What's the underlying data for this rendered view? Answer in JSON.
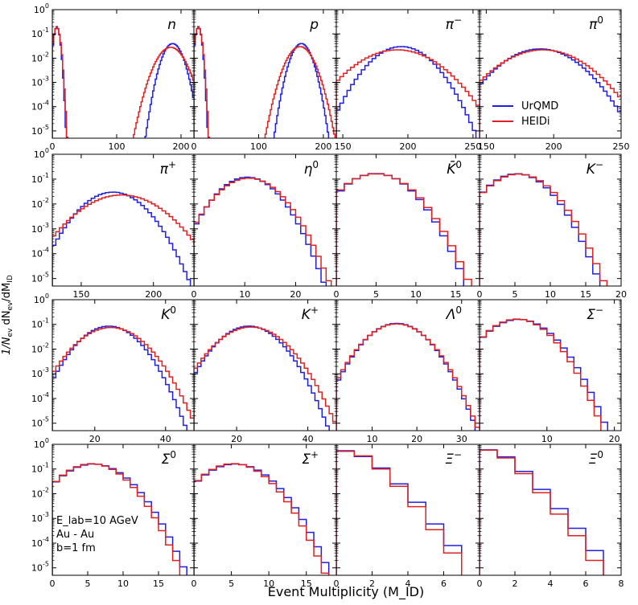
{
  "chart_data": {
    "type": "step",
    "xlabel": "Event Multiplicity (M_ID)",
    "ylabel": "1/N_ev dN_ev/dM_ID",
    "yscale": "log",
    "ylim": [
      5e-06,
      1
    ],
    "y_ticks": [
      "10^-5",
      "10^-4",
      "10^-3",
      "10^-2",
      "10^-1",
      "10^0"
    ],
    "legend": {
      "entries": [
        "UrQMD",
        "HEIDi"
      ],
      "colors": [
        "#1f1fe0",
        "#e02020"
      ],
      "location": "center-right of pi0 panel"
    },
    "annotation": [
      "E_lab=10 AGeV",
      "Au - Au",
      "b=1 fm"
    ],
    "panels": [
      {
        "particle": "n",
        "label_main": "n",
        "label_sup": "",
        "xlim": [
          0,
          220
        ],
        "xticks": [
          0,
          100,
          200
        ],
        "bimodal": true,
        "series": [
          {
            "name": "UrQMD",
            "peaks": [
              {
                "mu": 7,
                "sigma": 3.2,
                "amp": 0.2
              },
              {
                "mu": 187,
                "sigma": 10,
                "amp": 0.04
              }
            ]
          },
          {
            "name": "HEIDi",
            "peaks": [
              {
                "mu": 7,
                "sigma": 3.5,
                "amp": 0.19
              },
              {
                "mu": 184,
                "sigma": 14,
                "amp": 0.028
              }
            ]
          }
        ]
      },
      {
        "particle": "p",
        "label_main": "p",
        "label_sup": "",
        "xlim": [
          0,
          220
        ],
        "xticks": [
          0,
          100,
          200
        ],
        "bimodal": true,
        "series": [
          {
            "name": "UrQMD",
            "peaks": [
              {
                "mu": 7,
                "sigma": 3.2,
                "amp": 0.2
              },
              {
                "mu": 166,
                "sigma": 10,
                "amp": 0.04
              }
            ]
          },
          {
            "name": "HEIDi",
            "peaks": [
              {
                "mu": 7,
                "sigma": 3.5,
                "amp": 0.19
              },
              {
                "mu": 164,
                "sigma": 13,
                "amp": 0.03
              }
            ]
          }
        ]
      },
      {
        "particle": "pi-",
        "label_main": "π",
        "label_sup": "−",
        "xlim": [
          145,
          255
        ],
        "xticks": [
          150,
          200,
          250
        ],
        "series": [
          {
            "name": "UrQMD",
            "mu": 195,
            "sigma": 14,
            "amp": 0.03
          },
          {
            "name": "HEIDi",
            "mu": 192,
            "sigma": 19,
            "amp": 0.022
          }
        ]
      },
      {
        "particle": "pi0",
        "label_main": "π",
        "label_sup": "0",
        "xlim": [
          145,
          250
        ],
        "xticks": [
          150,
          200,
          250
        ],
        "series": [
          {
            "name": "UrQMD",
            "mu": 190,
            "sigma": 17,
            "amp": 0.024
          },
          {
            "name": "HEIDi",
            "mu": 192,
            "sigma": 19,
            "amp": 0.022
          }
        ]
      },
      {
        "particle": "pi+",
        "label_main": "π",
        "label_sup": "+",
        "xlim": [
          130,
          228
        ],
        "xticks": [
          150,
          200
        ],
        "series": [
          {
            "name": "UrQMD",
            "mu": 172,
            "sigma": 13,
            "amp": 0.03
          },
          {
            "name": "HEIDi",
            "mu": 178,
            "sigma": 17,
            "amp": 0.023
          }
        ]
      },
      {
        "particle": "eta0",
        "label_main": "η",
        "label_sup": "0",
        "xlim": [
          0,
          28
        ],
        "xticks": [
          0,
          10,
          20
        ],
        "series": [
          {
            "name": "UrQMD",
            "mu": 10.5,
            "sigma": 3.4,
            "amp": 0.12
          },
          {
            "name": "HEIDi",
            "mu": 10.8,
            "sigma": 3.6,
            "amp": 0.11
          }
        ]
      },
      {
        "particle": "antiK0",
        "label_main": "K̄",
        "label_sup": "0",
        "xlim": [
          0,
          18
        ],
        "xticks": [
          0,
          5,
          10,
          15
        ],
        "series": [
          {
            "name": "UrQMD",
            "mu": 5,
            "sigma": 2.5,
            "amp": 0.17
          },
          {
            "name": "HEIDi",
            "mu": 5,
            "sigma": 2.6,
            "amp": 0.165
          }
        ]
      },
      {
        "particle": "K-",
        "label_main": "K",
        "label_sup": "−",
        "xlim": [
          0,
          20
        ],
        "xticks": [
          0,
          5,
          10,
          15,
          20
        ],
        "series": [
          {
            "name": "UrQMD",
            "mu": 5.3,
            "sigma": 2.6,
            "amp": 0.165
          },
          {
            "name": "HEIDi",
            "mu": 5.5,
            "sigma": 2.7,
            "amp": 0.16
          }
        ]
      },
      {
        "particle": "K0",
        "label_main": "K",
        "label_sup": "0",
        "xlim": [
          8,
          48
        ],
        "xticks": [
          20,
          40
        ],
        "series": [
          {
            "name": "UrQMD",
            "mu": 24,
            "sigma": 5,
            "amp": 0.085
          },
          {
            "name": "HEIDi",
            "mu": 24.5,
            "sigma": 5.6,
            "amp": 0.075
          }
        ]
      },
      {
        "particle": "K+",
        "label_main": "K",
        "label_sup": "+",
        "xlim": [
          8,
          48
        ],
        "xticks": [
          20,
          40
        ],
        "series": [
          {
            "name": "UrQMD",
            "mu": 23.5,
            "sigma": 5.1,
            "amp": 0.085
          },
          {
            "name": "HEIDi",
            "mu": 24,
            "sigma": 5.6,
            "amp": 0.078
          }
        ]
      },
      {
        "particle": "Lambda0",
        "label_main": "Λ",
        "label_sup": "0",
        "xlim": [
          2,
          34
        ],
        "xticks": [
          10,
          20,
          30
        ],
        "series": [
          {
            "name": "UrQMD",
            "mu": 15.5,
            "sigma": 4,
            "amp": 0.11
          },
          {
            "name": "HEIDi",
            "mu": 15.5,
            "sigma": 4.1,
            "amp": 0.105
          }
        ]
      },
      {
        "particle": "Sigma-",
        "label_main": "Σ",
        "label_sup": "−",
        "xlim": [
          0,
          21
        ],
        "xticks": [
          10,
          20
        ],
        "series": [
          {
            "name": "UrQMD",
            "mu": 5.8,
            "sigma": 2.9,
            "amp": 0.16
          },
          {
            "name": "HEIDi",
            "mu": 5.6,
            "sigma": 2.8,
            "amp": 0.165
          }
        ]
      },
      {
        "particle": "Sigma0",
        "label_main": "Σ",
        "label_sup": "0",
        "xlim": [
          0,
          20
        ],
        "xticks": [
          0,
          5,
          10,
          15
        ],
        "series": [
          {
            "name": "UrQMD",
            "mu": 5.8,
            "sigma": 2.9,
            "amp": 0.16
          },
          {
            "name": "HEIDi",
            "mu": 5.6,
            "sigma": 2.8,
            "amp": 0.165
          }
        ]
      },
      {
        "particle": "Sigma+",
        "label_main": "Σ",
        "label_sup": "+",
        "xlim": [
          0,
          19
        ],
        "xticks": [
          0,
          5,
          10,
          15
        ],
        "series": [
          {
            "name": "UrQMD",
            "mu": 5.5,
            "sigma": 2.8,
            "amp": 0.16
          },
          {
            "name": "HEIDi",
            "mu": 5.3,
            "sigma": 2.7,
            "amp": 0.165
          }
        ]
      },
      {
        "particle": "Xi-",
        "label_main": "Ξ",
        "label_sup": "−",
        "xlim": [
          0,
          8
        ],
        "xticks": [
          0,
          2,
          4,
          6
        ],
        "series": [
          {
            "name": "UrQMD",
            "values": [
              0.55,
              0.32,
              0.11,
              0.025,
              0.0045,
              0.0006,
              8e-05
            ],
            "start": 0
          },
          {
            "name": "HEIDi",
            "values": [
              0.52,
              0.34,
              0.1,
              0.02,
              0.003,
              0.00035,
              4e-05
            ],
            "start": 0
          }
        ]
      },
      {
        "particle": "Xi0",
        "label_main": "Ξ",
        "label_sup": "0",
        "xlim": [
          0,
          8
        ],
        "xticks": [
          0,
          2,
          4,
          6,
          8
        ],
        "series": [
          {
            "name": "UrQMD",
            "values": [
              0.6,
              0.31,
              0.08,
              0.015,
              0.0025,
              0.0004,
              5e-05
            ],
            "start": 0
          },
          {
            "name": "HEIDi",
            "values": [
              0.58,
              0.28,
              0.065,
              0.011,
              0.0015,
              0.0002,
              2e-05
            ],
            "start": 0
          }
        ]
      }
    ]
  }
}
